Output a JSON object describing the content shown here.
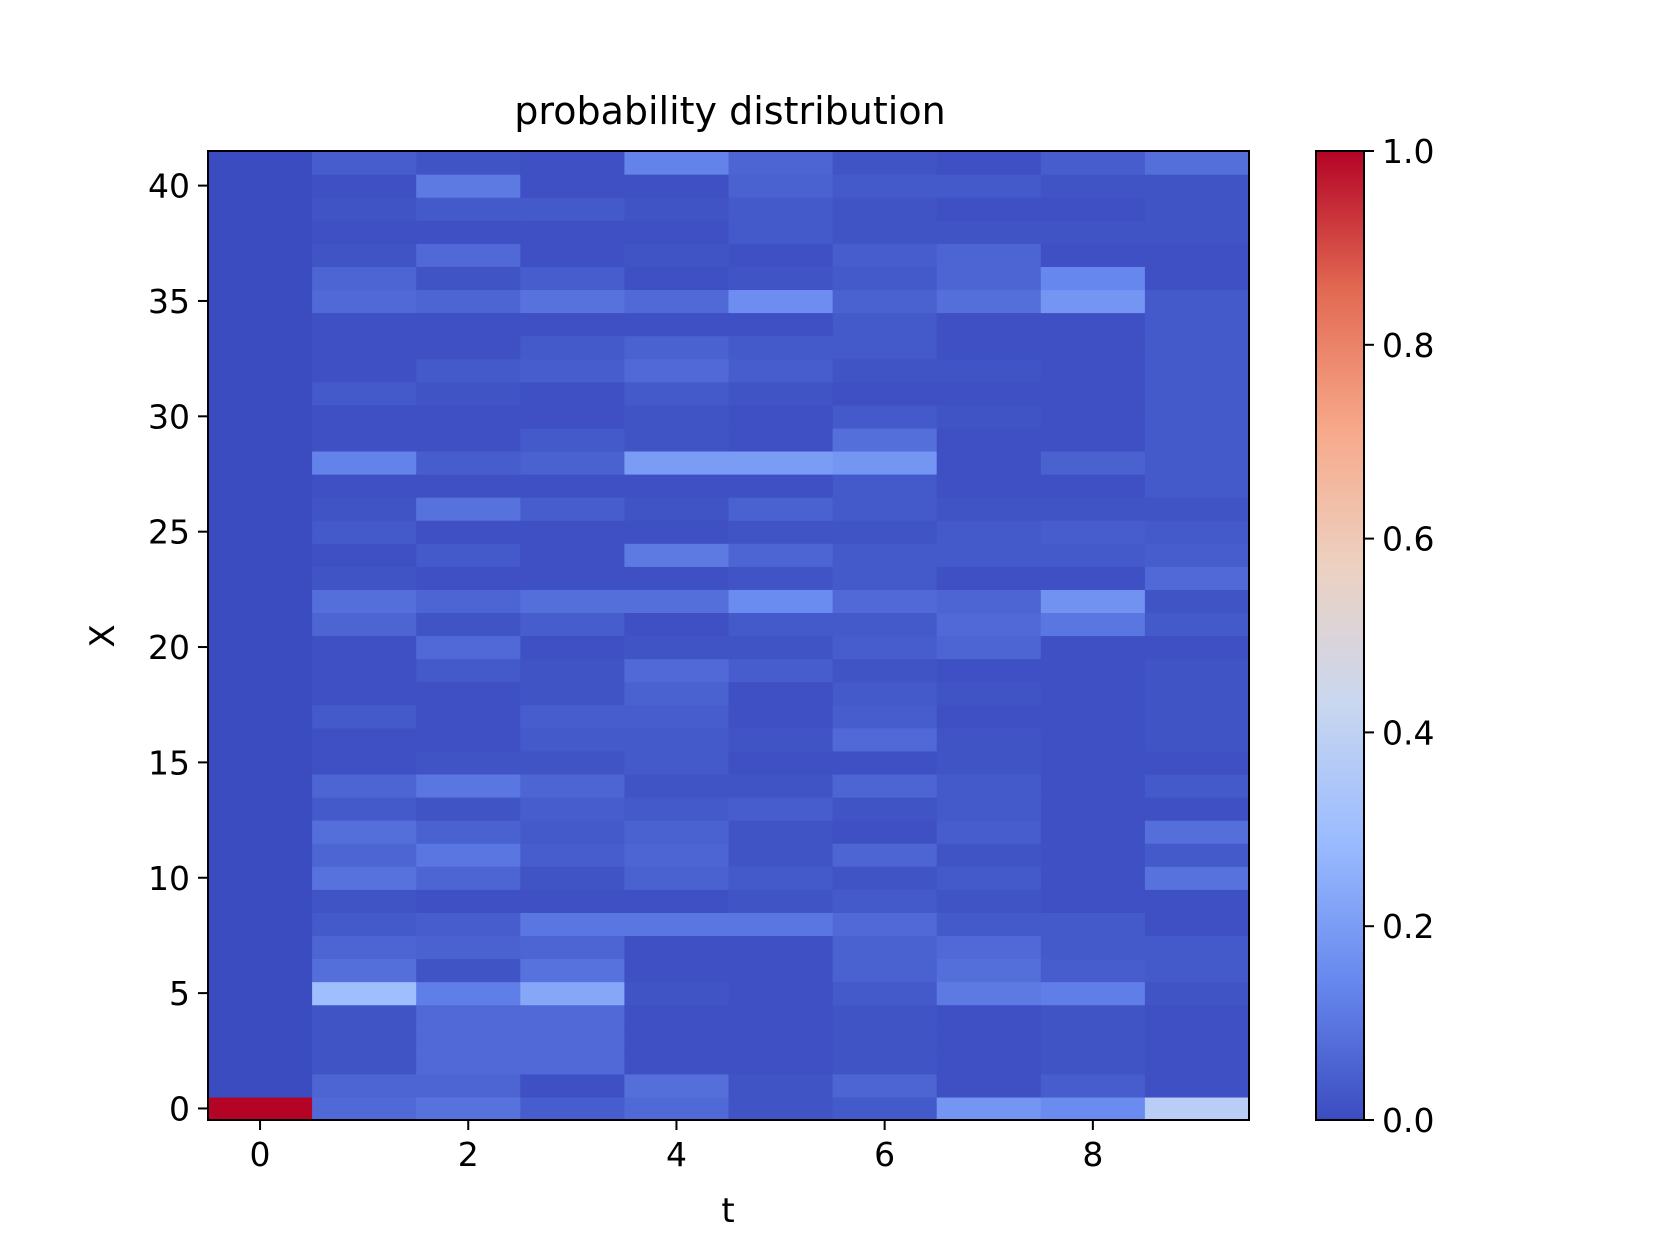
{
  "chart_data": {
    "type": "heatmap",
    "title": "probability distribution",
    "xlabel": "t",
    "ylabel": "X",
    "x_ticks": [
      0,
      2,
      4,
      6,
      8
    ],
    "y_ticks": [
      0,
      5,
      10,
      15,
      20,
      25,
      30,
      35,
      40
    ],
    "colorbar_ticks": [
      "0.0",
      "0.2",
      "0.4",
      "0.6",
      "0.8",
      "1.0"
    ],
    "t_values": [
      0,
      1,
      2,
      3,
      4,
      5,
      6,
      7,
      8,
      9
    ],
    "x_values_count": 42,
    "xlim": [
      -0.5,
      9.5
    ],
    "ylim": [
      -0.5,
      41.5
    ],
    "vmin": 0.0,
    "vmax": 1.0,
    "colormap": "coolwarm",
    "colormap_stops": [
      "#3b4cc0",
      "#6788ee",
      "#9abbff",
      "#c9d7f0",
      "#edd1c2",
      "#f7a889",
      "#e26952",
      "#b40426"
    ],
    "notes": "values[t][x] is probability of X=x at time t",
    "values": [
      [
        1.0,
        0,
        0,
        0,
        0,
        0,
        0,
        0,
        0,
        0,
        0,
        0,
        0,
        0,
        0,
        0,
        0,
        0,
        0,
        0,
        0,
        0,
        0,
        0,
        0,
        0,
        0,
        0,
        0,
        0,
        0,
        0,
        0,
        0,
        0,
        0,
        0,
        0,
        0,
        0,
        0,
        0
      ],
      [
        0.07,
        0.06,
        0.02,
        0.02,
        0.02,
        0.3,
        0.08,
        0.06,
        0.03,
        0.02,
        0.09,
        0.06,
        0.08,
        0.03,
        0.06,
        0.01,
        0.01,
        0.03,
        0.01,
        0.01,
        0.01,
        0.06,
        0.08,
        0.02,
        0.01,
        0.03,
        0.02,
        0.01,
        0.13,
        0.01,
        0.01,
        0.03,
        0.01,
        0.01,
        0.01,
        0.07,
        0.06,
        0.02,
        0.01,
        0.02,
        0.01,
        0.04
      ],
      [
        0.09,
        0.06,
        0.07,
        0.07,
        0.07,
        0.12,
        0.02,
        0.05,
        0.04,
        0.01,
        0.06,
        0.1,
        0.05,
        0.02,
        0.1,
        0.02,
        0.01,
        0.01,
        0.01,
        0.03,
        0.07,
        0.02,
        0.06,
        0.01,
        0.03,
        0.01,
        0.09,
        0.01,
        0.04,
        0.01,
        0.01,
        0.02,
        0.03,
        0.01,
        0.01,
        0.06,
        0.02,
        0.07,
        0.01,
        0.03,
        0.11,
        0.02
      ],
      [
        0.04,
        0.01,
        0.07,
        0.07,
        0.07,
        0.23,
        0.09,
        0.06,
        0.1,
        0.01,
        0.02,
        0.04,
        0.03,
        0.04,
        0.06,
        0.02,
        0.03,
        0.04,
        0.02,
        0.02,
        0.01,
        0.04,
        0.08,
        0.01,
        0.01,
        0.01,
        0.04,
        0.01,
        0.05,
        0.03,
        0.01,
        0.01,
        0.04,
        0.03,
        0.01,
        0.09,
        0.04,
        0.01,
        0.01,
        0.03,
        0.01,
        0.01
      ],
      [
        0.07,
        0.08,
        0.01,
        0.01,
        0.01,
        0.02,
        0.01,
        0.01,
        0.1,
        0.01,
        0.05,
        0.06,
        0.05,
        0.03,
        0.02,
        0.03,
        0.03,
        0.04,
        0.05,
        0.07,
        0.02,
        0.01,
        0.08,
        0.01,
        0.11,
        0.01,
        0.02,
        0.01,
        0.2,
        0.02,
        0.02,
        0.03,
        0.07,
        0.05,
        0.01,
        0.07,
        0.01,
        0.02,
        0.01,
        0.02,
        0.01,
        0.13
      ],
      [
        0.02,
        0.02,
        0.01,
        0.01,
        0.01,
        0.01,
        0.01,
        0.01,
        0.1,
        0.02,
        0.03,
        0.02,
        0.02,
        0.04,
        0.02,
        0.01,
        0.02,
        0.01,
        0.01,
        0.04,
        0.02,
        0.03,
        0.15,
        0.02,
        0.06,
        0.02,
        0.05,
        0.01,
        0.2,
        0.01,
        0.01,
        0.02,
        0.04,
        0.03,
        0.01,
        0.16,
        0.02,
        0.01,
        0.03,
        0.03,
        0.05,
        0.06
      ],
      [
        0.03,
        0.06,
        0.02,
        0.02,
        0.02,
        0.03,
        0.05,
        0.05,
        0.07,
        0.03,
        0.02,
        0.06,
        0.01,
        0.02,
        0.06,
        0.01,
        0.07,
        0.04,
        0.03,
        0.02,
        0.04,
        0.03,
        0.07,
        0.03,
        0.03,
        0.02,
        0.03,
        0.03,
        0.18,
        0.08,
        0.03,
        0.01,
        0.02,
        0.03,
        0.03,
        0.05,
        0.03,
        0.04,
        0.02,
        0.02,
        0.03,
        0.02
      ],
      [
        0.18,
        0.01,
        0.01,
        0.01,
        0.01,
        0.11,
        0.08,
        0.07,
        0.03,
        0.02,
        0.03,
        0.02,
        0.04,
        0.03,
        0.03,
        0.02,
        0.02,
        0.01,
        0.02,
        0.01,
        0.06,
        0.07,
        0.06,
        0.01,
        0.03,
        0.03,
        0.02,
        0.01,
        0.01,
        0.01,
        0.02,
        0.01,
        0.02,
        0.01,
        0.01,
        0.08,
        0.06,
        0.06,
        0.02,
        0.01,
        0.03,
        0.01
      ],
      [
        0.15,
        0.04,
        0.02,
        0.02,
        0.02,
        0.12,
        0.04,
        0.03,
        0.03,
        0.01,
        0.01,
        0.01,
        0.01,
        0.01,
        0.01,
        0.01,
        0.01,
        0.01,
        0.01,
        0.01,
        0.01,
        0.1,
        0.17,
        0.01,
        0.03,
        0.04,
        0.02,
        0.01,
        0.05,
        0.01,
        0.01,
        0.01,
        0.01,
        0.01,
        0.01,
        0.18,
        0.14,
        0.01,
        0.02,
        0.01,
        0.02,
        0.04
      ],
      [
        0.38,
        0.01,
        0.01,
        0.01,
        0.01,
        0.02,
        0.03,
        0.03,
        0.01,
        0.01,
        0.09,
        0.03,
        0.08,
        0.01,
        0.03,
        0.01,
        0.02,
        0.02,
        0.02,
        0.02,
        0.01,
        0.03,
        0.02,
        0.07,
        0.04,
        0.03,
        0.02,
        0.03,
        0.03,
        0.03,
        0.03,
        0.03,
        0.03,
        0.03,
        0.03,
        0.03,
        0.01,
        0.01,
        0.02,
        0.02,
        0.02,
        0.08
      ]
    ]
  }
}
